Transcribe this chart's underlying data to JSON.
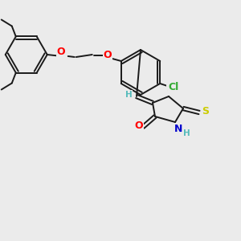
{
  "bg_color": "#ebebeb",
  "bond_color": "#1a1a1a",
  "figsize": [
    3.0,
    3.0
  ],
  "dpi": 100,
  "lw": 1.4,
  "colors": {
    "O": "#ff0000",
    "N": "#0000cc",
    "S": "#cccc00",
    "Cl": "#33aa33",
    "H": "#55bbbb",
    "C": "#1a1a1a"
  }
}
